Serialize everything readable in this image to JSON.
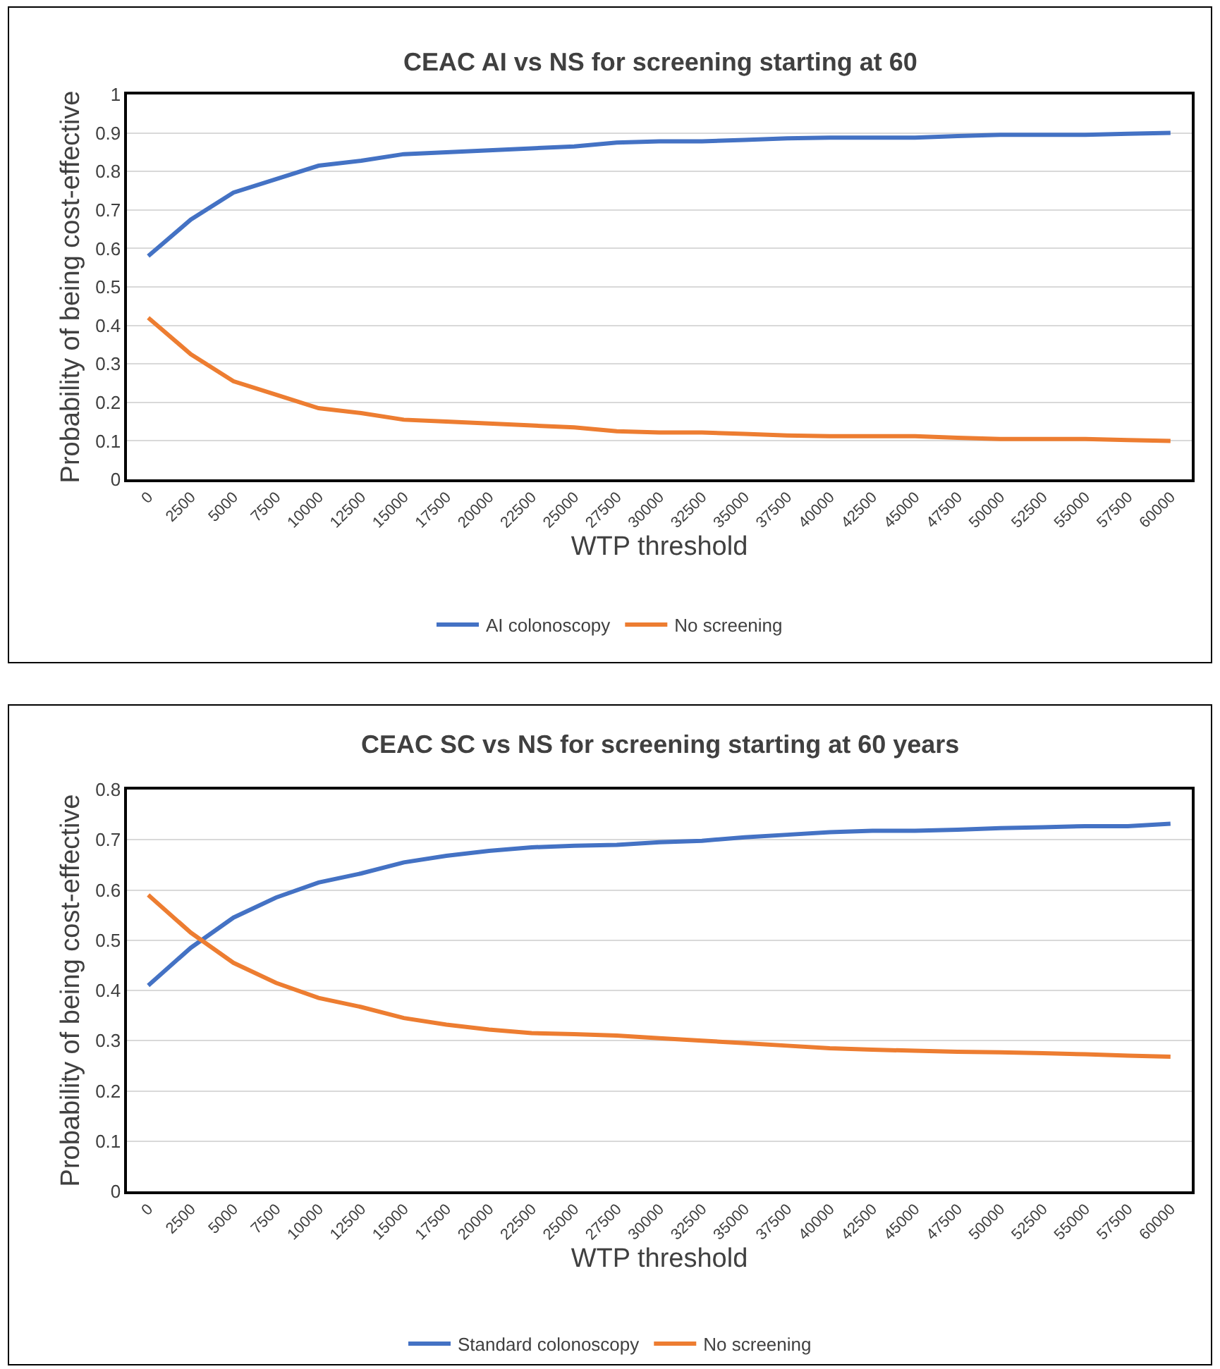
{
  "chart_data": [
    {
      "type": "line",
      "title": "CEAC AI vs NS for screening starting at 60",
      "xlabel": "WTP threshold",
      "ylabel": "Probability of being cost-effective",
      "categories": [
        "0",
        "2500",
        "5000",
        "7500",
        "10000",
        "12500",
        "15000",
        "17500",
        "20000",
        "22500",
        "25000",
        "27500",
        "30000",
        "32500",
        "35000",
        "37500",
        "40000",
        "42500",
        "45000",
        "47500",
        "50000",
        "52500",
        "55000",
        "57500",
        "60000"
      ],
      "series": [
        {
          "name": "AI colonoscopy",
          "color": "#4472c4",
          "values": [
            0.58,
            0.675,
            0.745,
            0.78,
            0.815,
            0.828,
            0.845,
            0.85,
            0.855,
            0.86,
            0.865,
            0.875,
            0.878,
            0.878,
            0.882,
            0.886,
            0.888,
            0.888,
            0.888,
            0.892,
            0.895,
            0.895,
            0.895,
            0.898,
            0.9
          ]
        },
        {
          "name": "No screening",
          "color": "#ed7d31",
          "values": [
            0.42,
            0.325,
            0.255,
            0.22,
            0.185,
            0.172,
            0.155,
            0.15,
            0.145,
            0.14,
            0.135,
            0.125,
            0.122,
            0.122,
            0.118,
            0.114,
            0.112,
            0.112,
            0.112,
            0.108,
            0.105,
            0.105,
            0.105,
            0.102,
            0.1
          ]
        }
      ],
      "ylim": [
        0,
        1
      ],
      "yticks": [
        0,
        0.1,
        0.2,
        0.3,
        0.4,
        0.5,
        0.6,
        0.7,
        0.8,
        0.9,
        1
      ],
      "grid": "y",
      "legend": "bottom",
      "marker": "none",
      "line_style": "solid"
    },
    {
      "type": "line",
      "title": "CEAC SC vs NS for screening starting at 60 years",
      "xlabel": "WTP threshold",
      "ylabel": "Probability of being cost-effective",
      "categories": [
        "0",
        "2500",
        "5000",
        "7500",
        "10000",
        "12500",
        "15000",
        "17500",
        "20000",
        "22500",
        "25000",
        "27500",
        "30000",
        "32500",
        "35000",
        "37500",
        "40000",
        "42500",
        "45000",
        "47500",
        "50000",
        "52500",
        "55000",
        "57500",
        "60000"
      ],
      "series": [
        {
          "name": "Standard colonoscopy",
          "color": "#4472c4",
          "values": [
            0.41,
            0.485,
            0.545,
            0.585,
            0.615,
            0.633,
            0.655,
            0.668,
            0.678,
            0.685,
            0.688,
            0.69,
            0.695,
            0.698,
            0.705,
            0.71,
            0.715,
            0.718,
            0.718,
            0.72,
            0.723,
            0.725,
            0.727,
            0.727,
            0.732
          ]
        },
        {
          "name": "No screening",
          "color": "#ed7d31",
          "values": [
            0.59,
            0.515,
            0.455,
            0.415,
            0.385,
            0.367,
            0.345,
            0.332,
            0.322,
            0.315,
            0.313,
            0.31,
            0.305,
            0.3,
            0.295,
            0.29,
            0.285,
            0.282,
            0.28,
            0.278,
            0.277,
            0.275,
            0.273,
            0.27,
            0.268
          ]
        }
      ],
      "ylim": [
        0,
        0.8
      ],
      "yticks": [
        0,
        0.1,
        0.2,
        0.3,
        0.4,
        0.5,
        0.6,
        0.7,
        0.8
      ],
      "grid": "y",
      "legend": "bottom",
      "marker": "none",
      "line_style": "solid"
    }
  ]
}
